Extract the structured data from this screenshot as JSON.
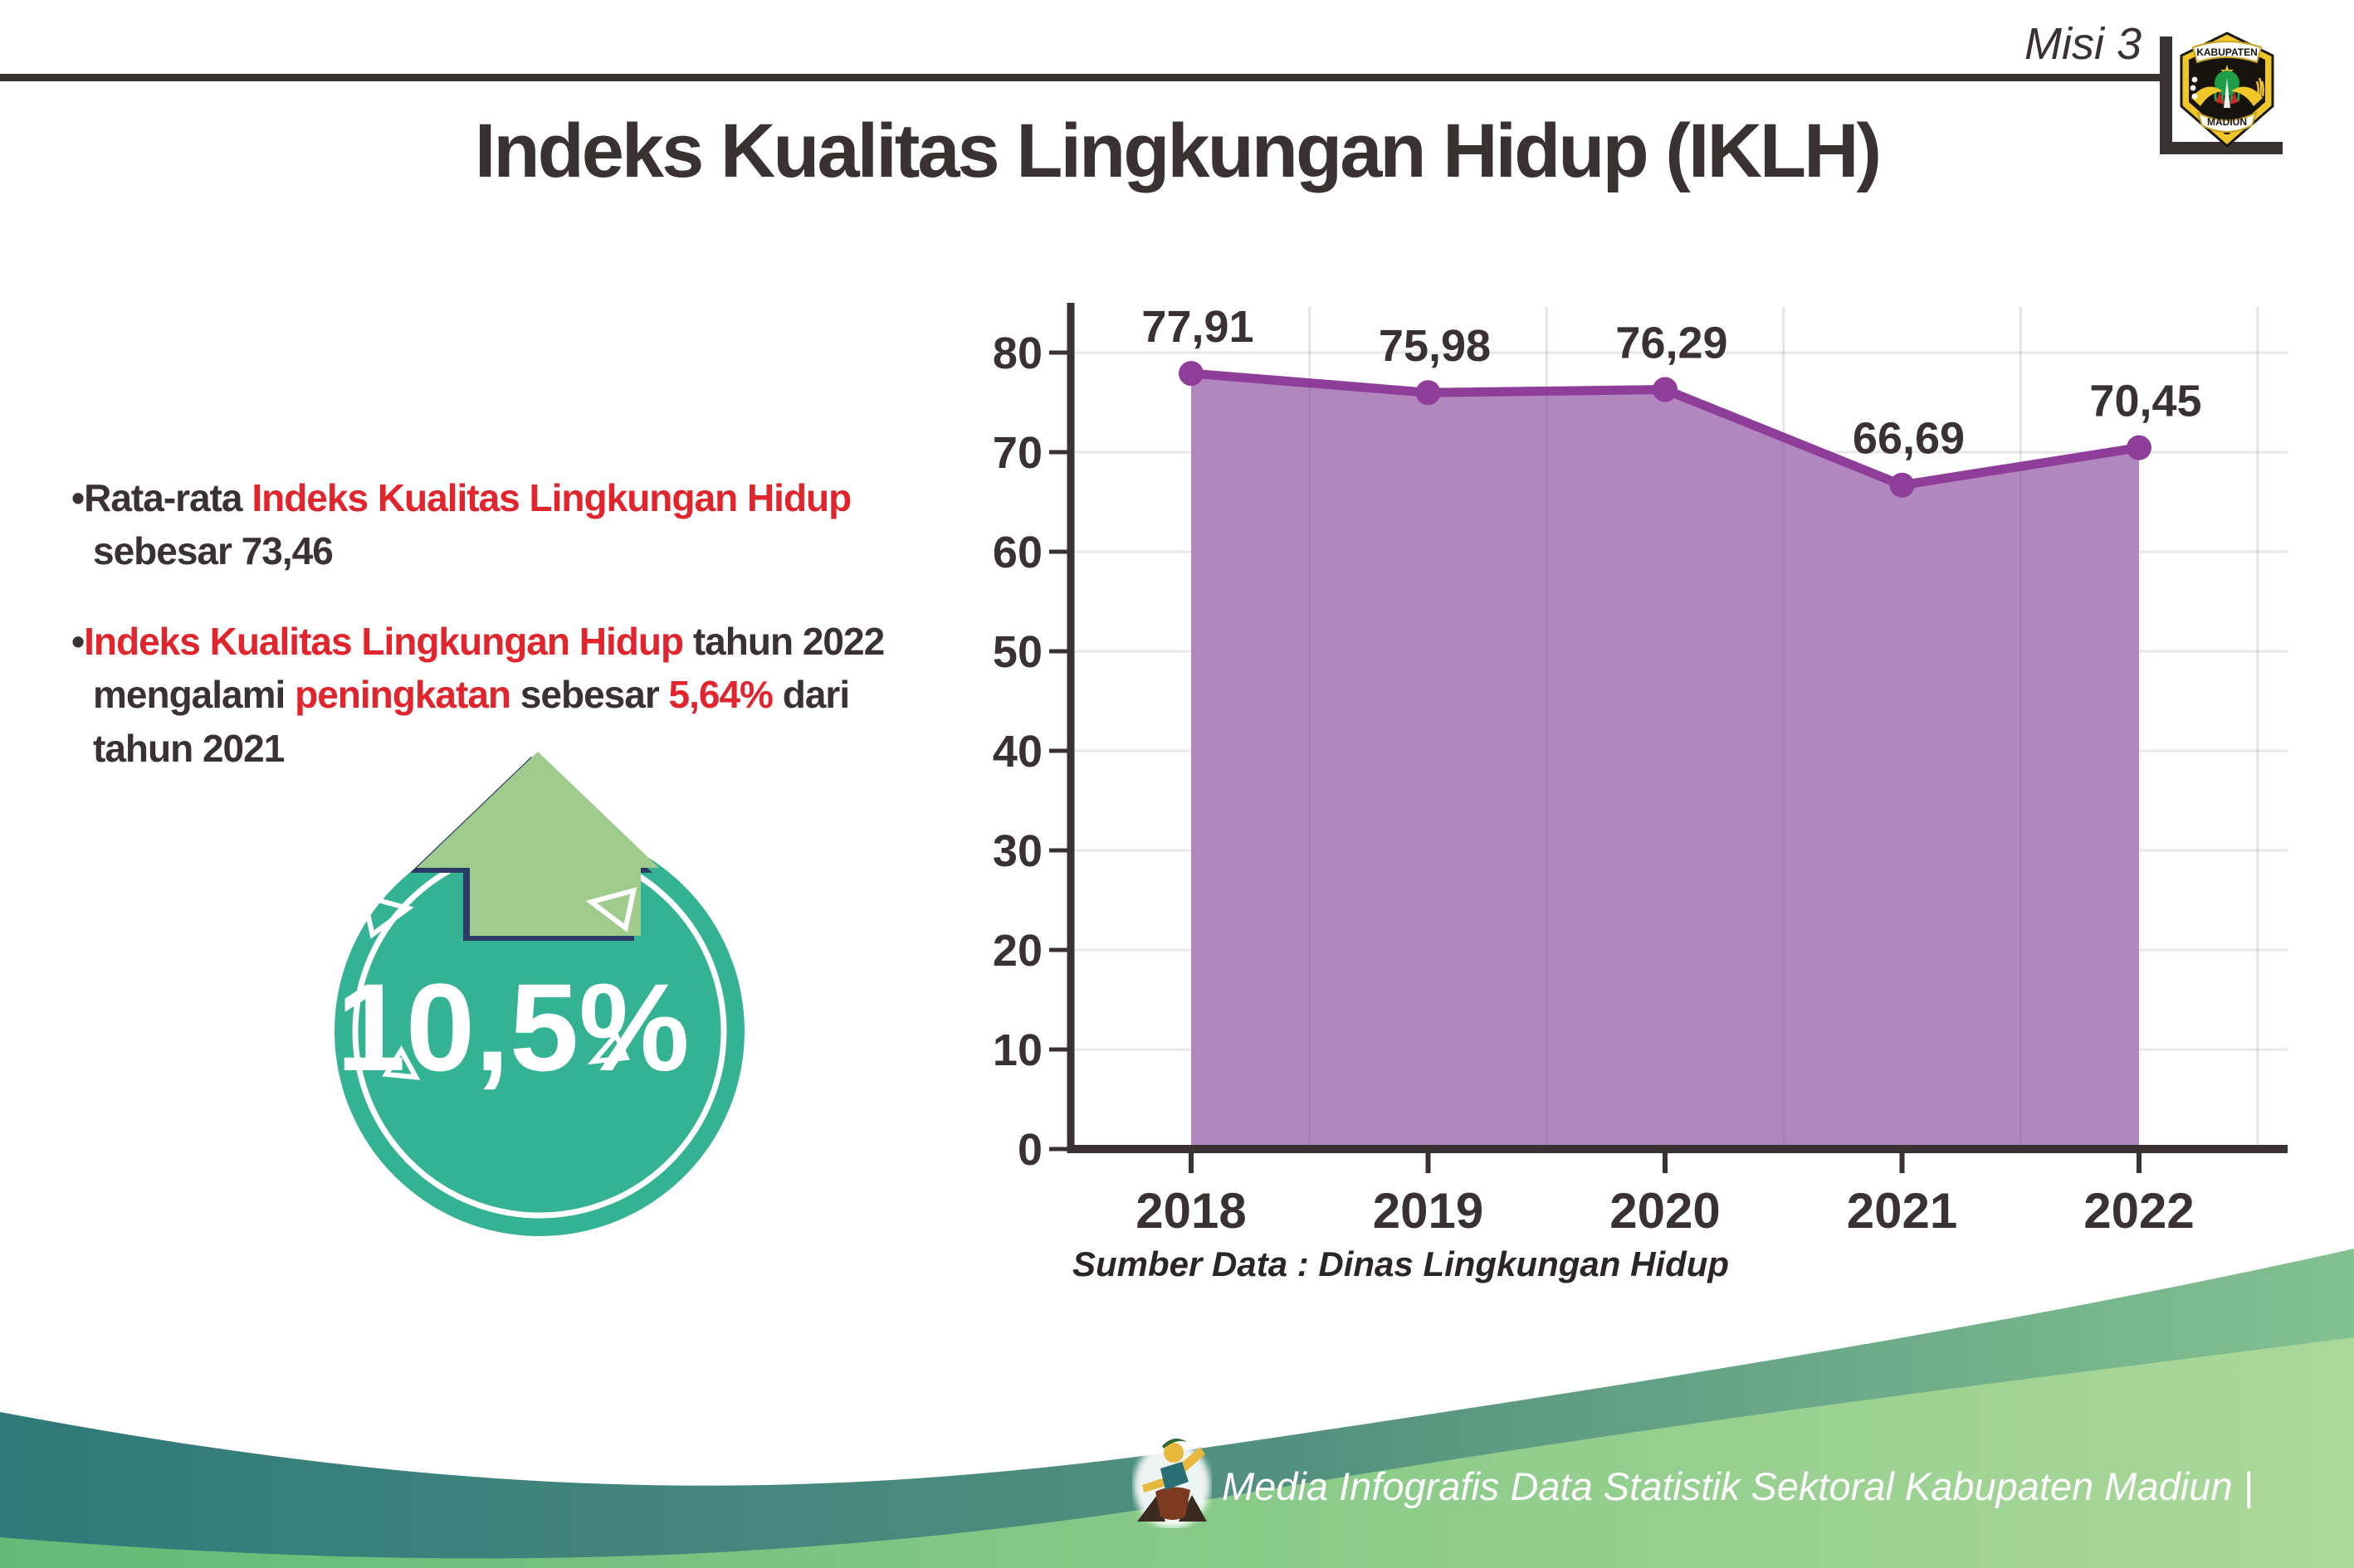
{
  "header": {
    "misi_label": "Misi 3",
    "title": "Indeks Kualitas Lingkungan Hidup (IKLH)"
  },
  "logo": {
    "name": "kabupaten-madiun-crest",
    "top_text": "KABUPATEN",
    "bottom_text": "MADIUN"
  },
  "bullets": [
    {
      "segments": [
        {
          "t": "•",
          "c": "dark"
        },
        {
          "t": "Rata-rata ",
          "c": "dark"
        },
        {
          "t": "Indeks Kualitas Lingkungan Hidup",
          "c": "red"
        },
        {
          "br": true
        },
        {
          "t": "sebesar 73,46",
          "c": "dark"
        }
      ]
    },
    {
      "segments": [
        {
          "t": "•",
          "c": "dark"
        },
        {
          "t": "Indeks Kualitas Lingkungan Hidup",
          "c": "red"
        },
        {
          "t": " tahun 2022",
          "c": "dark"
        },
        {
          "br": true
        },
        {
          "t": "mengalami ",
          "c": "dark"
        },
        {
          "t": "peningkatan",
          "c": "red"
        },
        {
          "t": " sebesar ",
          "c": "dark"
        },
        {
          "t": "5,64%",
          "c": "red"
        },
        {
          "t": " dari",
          "c": "dark"
        },
        {
          "br": true
        },
        {
          "t": "tahun 2021",
          "c": "dark"
        }
      ]
    }
  ],
  "badge": {
    "value": "10,5%",
    "circle_color": "#34b394",
    "ring_color": "#ffffff",
    "arrow_color": "#9fcc8c",
    "arrow_outline_color": "#2c3a66"
  },
  "chart_data": {
    "type": "area",
    "title": "Indeks Kualitas Lingkungan Hidup (IKLH) 2018-2022",
    "categories": [
      "2018",
      "2019",
      "2020",
      "2021",
      "2022"
    ],
    "values": [
      77.91,
      75.98,
      76.29,
      66.69,
      70.45
    ],
    "value_labels": [
      "77,91",
      "75,98",
      "76,29",
      "66,69",
      "70,45"
    ],
    "xlabel": "",
    "ylabel": "",
    "ylim": [
      0,
      80
    ],
    "ytick_step": 10,
    "grid": true,
    "legend": "none",
    "fill_color": "#b287c0",
    "line_color": "#8e3d98",
    "marker_color": "#8e3d98",
    "grid_color": "#e9e7e8",
    "axis_color": "#3a3133",
    "label_color": "#3a3133",
    "source_note": "Sumber Data : Dinas Lingkungan Hidup"
  },
  "footer": {
    "credit": "Media Infografis Data Statistik Sektoral Kabupaten Madiun |"
  },
  "colors": {
    "dark_text": "#3a3133",
    "red_text": "#e2242c",
    "teal_wave_start": "#30797a",
    "teal_wave_end": "#83c191",
    "green_wave_start": "#63ba76",
    "green_wave_end": "#abd89a"
  }
}
